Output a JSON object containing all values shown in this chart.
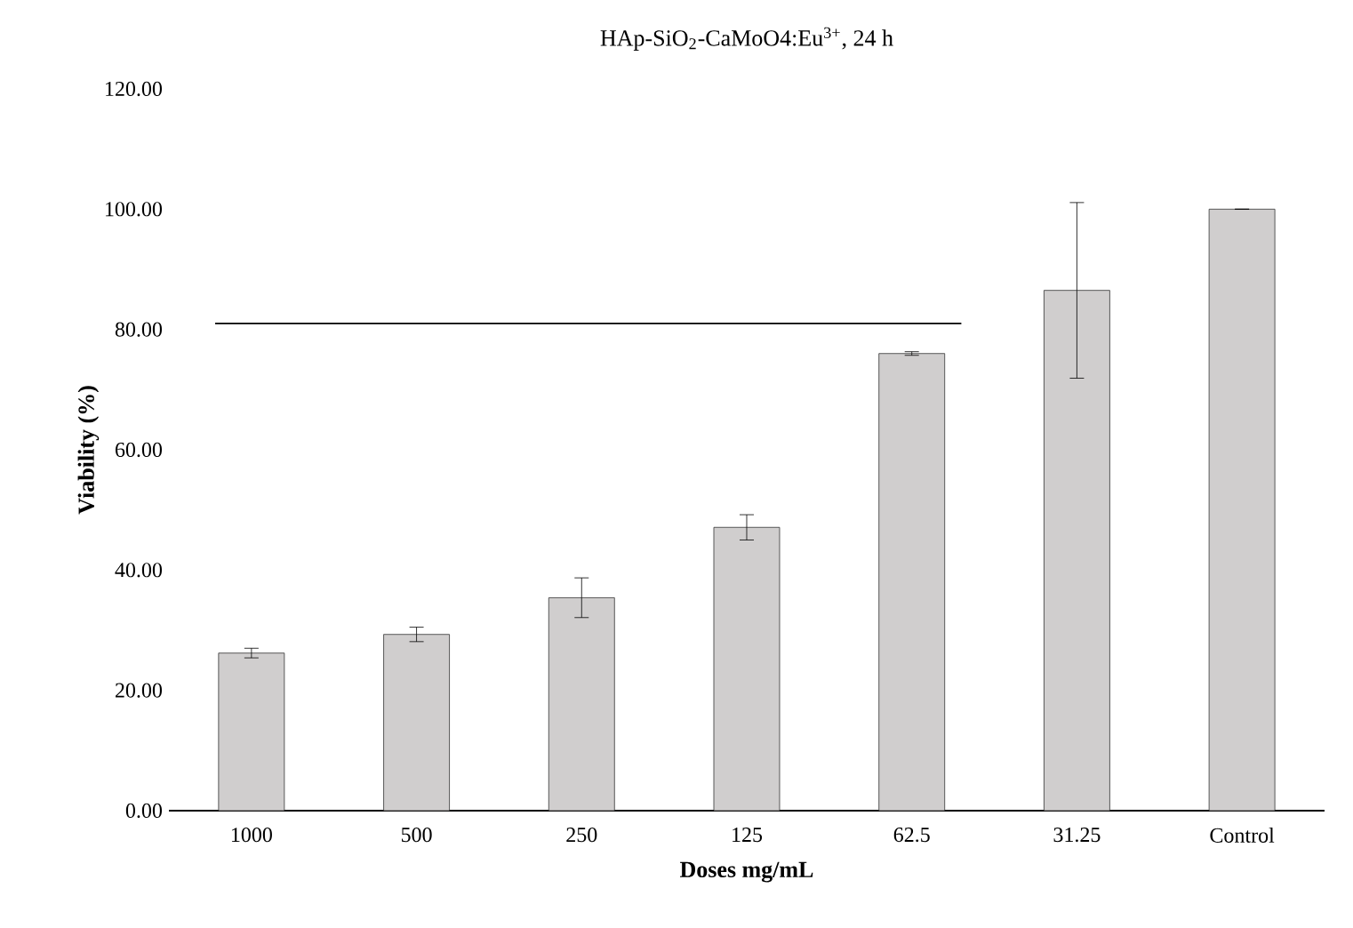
{
  "chart_data": {
    "type": "bar",
    "title": "HAp-SiO$_{2}$-CaMoO4:Eu$^{3+}$, 24 h",
    "xlabel": "Doses mg/mL",
    "ylabel": "Viability (%)",
    "categories": [
      "1000",
      "500",
      "250",
      "125",
      "62.5",
      "31.25",
      "Control"
    ],
    "values": [
      26.2,
      29.3,
      35.4,
      47.1,
      76.0,
      86.5,
      100.0
    ],
    "errors": [
      0.8,
      1.2,
      3.3,
      2.1,
      0.3,
      14.6,
      null
    ],
    "color": "#d0cece",
    "ylim": [
      0,
      120
    ],
    "yticks": [
      {
        "value": 0,
        "label": "0.00"
      },
      {
        "value": 20,
        "label": "20.00"
      },
      {
        "value": 40,
        "label": "40.00"
      },
      {
        "value": 60,
        "label": "60.00"
      },
      {
        "value": 80,
        "label": "80.00"
      },
      {
        "value": 100,
        "label": "100.00"
      },
      {
        "value": 120,
        "label": "120.00"
      }
    ],
    "ref_lines": [
      {
        "axis": "y",
        "value": 81
      }
    ]
  }
}
